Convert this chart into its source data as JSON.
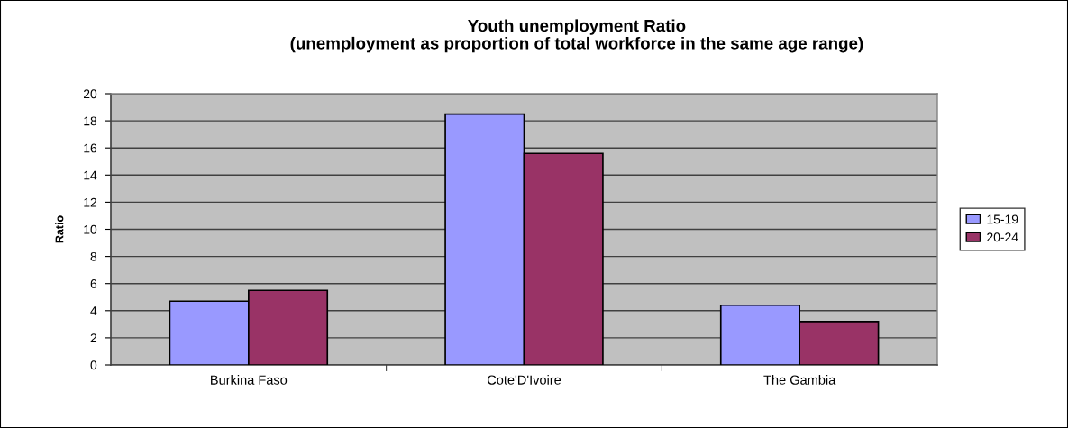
{
  "chart_data": {
    "type": "bar",
    "title": "Youth unemployment Ratio\n(unemployment as proportion of total workforce in the same age range)",
    "ylabel": "Ratio",
    "categories": [
      "Burkina Faso",
      "Cote'D'Ivoire",
      "The Gambia"
    ],
    "series": [
      {
        "name": "15-19",
        "color": "#9999ff",
        "values": [
          4.7,
          18.5,
          4.4
        ]
      },
      {
        "name": "20-24",
        "color": "#993366",
        "values": [
          5.5,
          15.6,
          3.2
        ]
      }
    ],
    "ylim": [
      0,
      20
    ],
    "yticks": [
      0,
      2,
      4,
      6,
      8,
      10,
      12,
      14,
      16,
      18,
      20
    ],
    "grid": "y",
    "legend": "right"
  }
}
